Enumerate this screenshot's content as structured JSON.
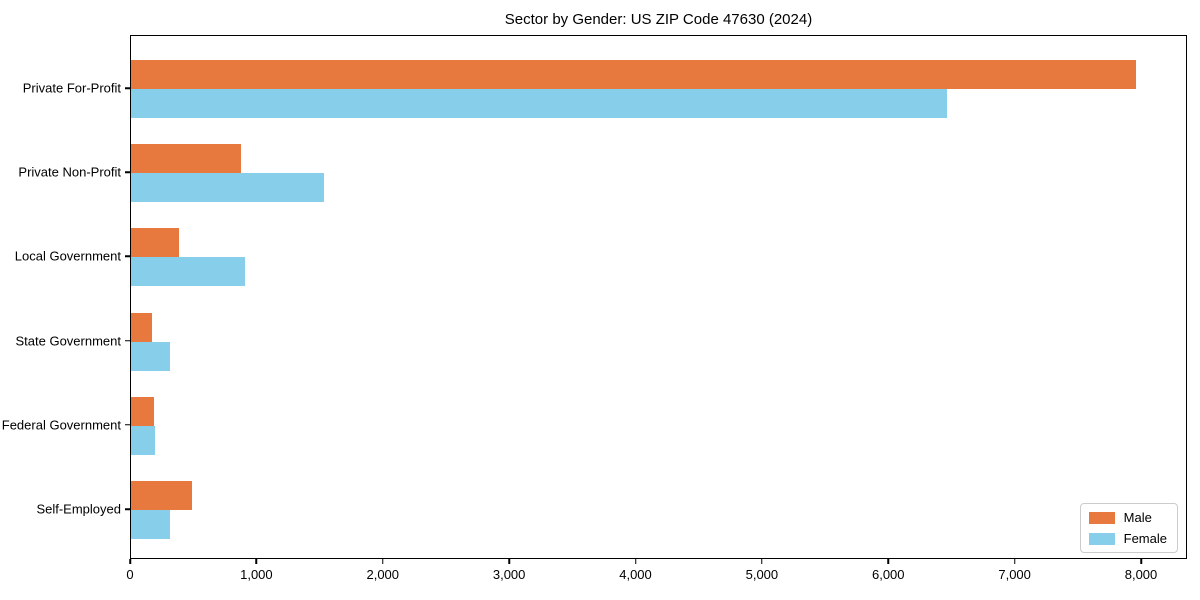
{
  "chart_data": {
    "type": "bar",
    "orientation": "horizontal",
    "title": "Sector by Gender: US ZIP Code 47630 (2024)",
    "categories": [
      "Private For-Profit",
      "Private Non-Profit",
      "Local Government",
      "State Government",
      "Federal Government",
      "Self-Employed"
    ],
    "series": [
      {
        "name": "Male",
        "color": "#e8793e",
        "values": [
          7950,
          870,
          380,
          165,
          180,
          485
        ]
      },
      {
        "name": "Female",
        "color": "#87ceeb",
        "values": [
          6460,
          1525,
          900,
          310,
          190,
          310
        ]
      }
    ],
    "xlabel": "",
    "ylabel": "",
    "xlim": [
      0,
      8360
    ],
    "x_ticks": [
      0,
      1000,
      2000,
      3000,
      4000,
      5000,
      6000,
      7000,
      8000
    ],
    "x_tick_labels": [
      "0",
      "1,000",
      "2,000",
      "3,000",
      "4,000",
      "5,000",
      "6,000",
      "7,000",
      "8,000"
    ],
    "grid": false,
    "legend": {
      "position": "lower right",
      "entries": [
        "Male",
        "Female"
      ]
    }
  },
  "colors": {
    "male": "#e8793e",
    "female": "#87ceeb",
    "axis": "#000000",
    "legend_border": "#cccccc",
    "background": "#ffffff"
  }
}
